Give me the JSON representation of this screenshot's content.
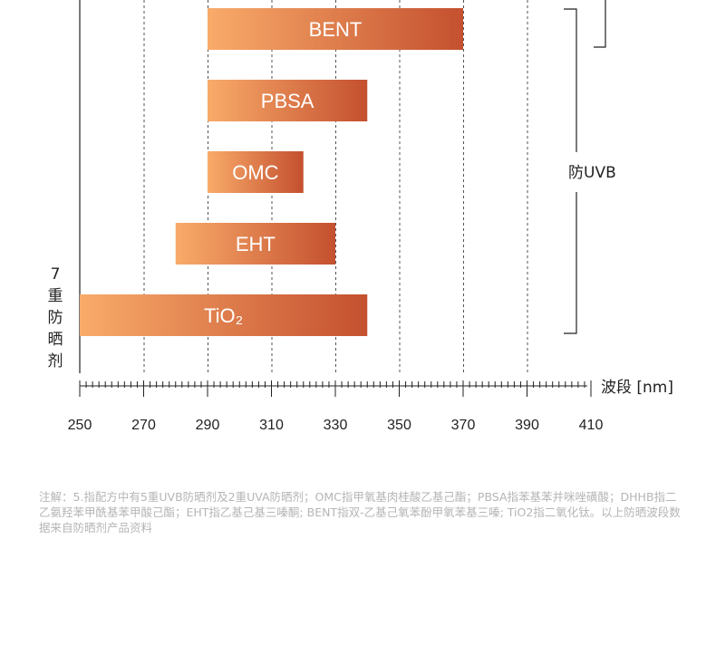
{
  "chart_data": {
    "type": "bar",
    "orientation": "horizontal-range",
    "categories": [
      "BENT",
      "PBSA",
      "OMC",
      "EHT",
      "TiO₂"
    ],
    "ranges": [
      [
        290,
        370
      ],
      [
        290,
        340
      ],
      [
        290,
        320
      ],
      [
        280,
        330
      ],
      [
        250,
        340
      ]
    ],
    "xlim": [
      250,
      410
    ],
    "xticks": [
      "250",
      "270",
      "290",
      "310",
      "330",
      "350",
      "370",
      "390",
      "410"
    ],
    "xlabel": "波段 [nm]",
    "left_label": [
      "7",
      "重",
      "防",
      "晒",
      "剂"
    ],
    "bracket_label": "防UVB",
    "bar_gradient": [
      "#f9ab6a",
      "#c4502f"
    ]
  },
  "note": "注解：5.指配方中有5重UVB防晒剂及2重UVA防晒剂；OMC指甲氧基肉桂酸乙基己酯；PBSA指苯基苯并咪唑磺酸；DHHB指二乙氨羟苯甲酰基苯甲酸己酯；EHT指乙基己基三嗪酮; BENT指双-乙基己氧苯酚甲氧苯基三嗪; TiO2指二氧化钛。以上防晒波段数据来自防晒剂产品资料"
}
